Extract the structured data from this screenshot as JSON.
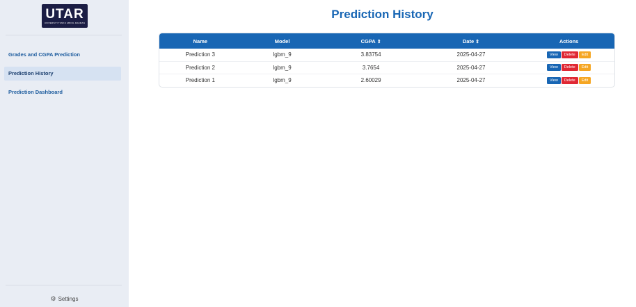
{
  "sidebar": {
    "logo_text": "UTAR",
    "logo_subtext": "UNIVERSITI TUNKU ABDUL RAHMAN",
    "items": [
      {
        "label": "Grades and CGPA Prediction",
        "active": false
      },
      {
        "label": "Prediction History",
        "active": true
      },
      {
        "label": "Prediction Dashboard",
        "active": false
      }
    ],
    "settings_label": "Settings",
    "settings_icon": "gear-icon"
  },
  "main": {
    "title": "Prediction History",
    "table": {
      "headers": [
        "Name",
        "Model",
        "CGPA",
        "Date",
        "Actions"
      ],
      "sort_glyph": "⇕",
      "rows": [
        {
          "name": "Prediction 3",
          "model": "lgbm_9",
          "cgpa": "3.83754",
          "date": "2025-04-27"
        },
        {
          "name": "Prediction 2",
          "model": "lgbm_9",
          "cgpa": "3.7654",
          "date": "2025-04-27"
        },
        {
          "name": "Prediction 1",
          "model": "lgbm_9",
          "cgpa": "2.60029",
          "date": "2025-04-27"
        }
      ],
      "actions": {
        "view": "View",
        "delete": "Delete",
        "edit": "Edit"
      }
    }
  },
  "colors": {
    "accent": "#1866b4",
    "delete": "#e02834",
    "edit": "#f5a623",
    "sidebar_bg": "#e9edf4"
  }
}
